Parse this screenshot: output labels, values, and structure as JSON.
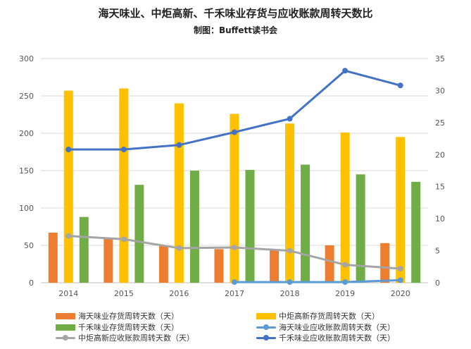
{
  "header": {
    "title": "海天味业、中炬高新、千禾味业存货与应收账款周转天数比",
    "subtitle": "制图：Buffett读书会"
  },
  "chart_data": {
    "type": "bar",
    "categories": [
      "2014",
      "2015",
      "2016",
      "2017",
      "2018",
      "2019",
      "2020"
    ],
    "y_left": {
      "min": 0,
      "max": 300,
      "step": 50,
      "ticks": [
        "0",
        "50",
        "100",
        "150",
        "200",
        "250",
        "300"
      ]
    },
    "y_right": {
      "min": 0,
      "max": 35,
      "step": 5,
      "ticks": [
        "0",
        "5",
        "10",
        "15",
        "20",
        "25",
        "30",
        "35"
      ]
    },
    "bar_series": [
      {
        "name": "海天味业存货周转天数（天）",
        "color": "#ED7D31",
        "values": [
          67,
          59,
          49,
          45,
          45,
          50,
          53
        ]
      },
      {
        "name": "中炬高新存货周转天数（天）",
        "color": "#FFC000",
        "values": [
          257,
          260,
          240,
          226,
          213,
          201,
          195
        ]
      },
      {
        "name": "千禾味业存货周转天数（天）",
        "color": "#70AD47",
        "values": [
          88,
          131,
          150,
          151,
          158,
          145,
          135
        ]
      }
    ],
    "line_series": [
      {
        "name": "海天味业应收账款周转天数（天）",
        "color": "#5B9BD5",
        "values": [
          null,
          null,
          null,
          0.1,
          0.1,
          0.1,
          0.4
        ]
      },
      {
        "name": "中炬高新应收账款周转天数（天）",
        "color": "#A5A5A5",
        "values": [
          7.3,
          6.8,
          5.4,
          5.5,
          5.0,
          2.8,
          2.2
        ]
      },
      {
        "name": "千禾味业应收账款周转天数（天）",
        "color": "#4472C4",
        "values": [
          20.8,
          20.8,
          21.5,
          23.5,
          25.6,
          33.1,
          30.8
        ]
      }
    ],
    "grid": true,
    "legend_position": "bottom"
  }
}
